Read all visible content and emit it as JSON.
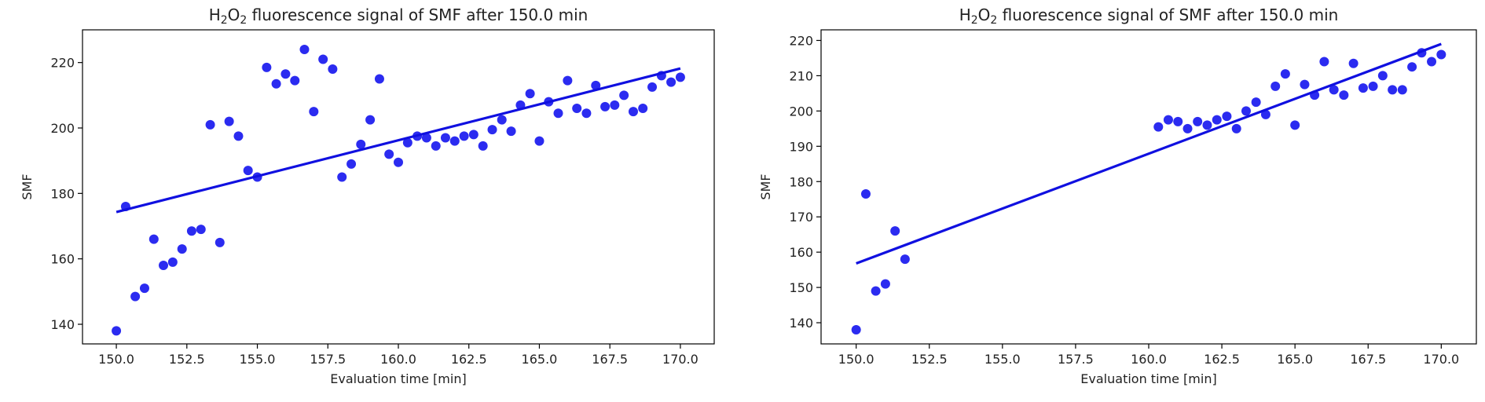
{
  "chart_data": [
    {
      "type": "scatter",
      "title": {
        "prefix": "H",
        "sub1": "2",
        "mid": "O",
        "sub2": "2",
        "rest": " fluorescence signal of SMF after 150.0 min"
      },
      "xlabel": "Evaluation time [min]",
      "ylabel": "SMF",
      "xlim": [
        148.8,
        171.2
      ],
      "ylim": [
        134.0,
        230.0
      ],
      "xticks": [
        150.0,
        152.5,
        155.0,
        157.5,
        160.0,
        162.5,
        165.0,
        167.5,
        170.0
      ],
      "xtick_labels": [
        "150.0",
        "152.5",
        "155.0",
        "157.5",
        "160.0",
        "162.5",
        "165.0",
        "167.5",
        "170.0"
      ],
      "yticks": [
        140,
        160,
        180,
        200,
        220
      ],
      "ytick_labels": [
        "140",
        "160",
        "180",
        "200",
        "220"
      ],
      "grid": false,
      "marker_color": "#2b2bf0",
      "line_color": "#1010e0",
      "series": [
        {
          "x": [
            150.0,
            150.33,
            150.67,
            151.0,
            151.33,
            151.67,
            152.0,
            152.33,
            152.67,
            153.0,
            153.33,
            153.67,
            154.0,
            154.33,
            154.67,
            155.0,
            155.33,
            155.67,
            156.0,
            156.33,
            156.67,
            157.0,
            157.33,
            157.67,
            158.0,
            158.33,
            158.67,
            159.0,
            159.33,
            159.67,
            160.0,
            160.33,
            160.67,
            161.0,
            161.33,
            161.67,
            162.0,
            162.33,
            162.67,
            163.0,
            163.33,
            163.67,
            164.0,
            164.33,
            164.67,
            165.0,
            165.33,
            165.67,
            166.0,
            166.33,
            166.67,
            167.0,
            167.33,
            167.67,
            168.0,
            168.33,
            168.67,
            169.0,
            169.33,
            169.67,
            170.0
          ],
          "y": [
            138.0,
            176.0,
            148.5,
            151.0,
            166.0,
            158.0,
            159.0,
            163.0,
            168.5,
            169.0,
            201.0,
            165.0,
            202.0,
            197.5,
            187.0,
            185.0,
            218.5,
            213.5,
            216.5,
            214.5,
            224.0,
            205.0,
            221.0,
            218.0,
            185.0,
            189.0,
            195.0,
            202.5,
            215.0,
            192.0,
            189.5,
            195.5,
            197.5,
            197.0,
            194.5,
            197.0,
            196.0,
            197.5,
            198.0,
            194.5,
            199.5,
            202.5,
            199.0,
            207.0,
            210.5,
            196.0,
            208.0,
            204.5,
            214.5,
            206.0,
            204.5,
            213.0,
            206.5,
            207.0,
            210.0,
            205.0,
            206.0,
            212.5,
            216.0,
            214.0,
            215.5
          ]
        }
      ],
      "fit": {
        "x": [
          150.0,
          170.0
        ],
        "y": [
          174.3,
          218.2
        ]
      }
    },
    {
      "type": "scatter",
      "title": {
        "prefix": "H",
        "sub1": "2",
        "mid": "O",
        "sub2": "2",
        "rest": " fluorescence signal of SMF after 150.0 min"
      },
      "xlabel": "Evaluation time [min]",
      "ylabel": "SMF",
      "xlim": [
        148.8,
        171.2
      ],
      "ylim": [
        134.0,
        223.0
      ],
      "xticks": [
        150.0,
        152.5,
        155.0,
        157.5,
        160.0,
        162.5,
        165.0,
        167.5,
        170.0
      ],
      "xtick_labels": [
        "150.0",
        "152.5",
        "155.0",
        "157.5",
        "160.0",
        "162.5",
        "165.0",
        "167.5",
        "170.0"
      ],
      "yticks": [
        140,
        150,
        160,
        170,
        180,
        190,
        200,
        210,
        220
      ],
      "ytick_labels": [
        "140",
        "150",
        "160",
        "170",
        "180",
        "190",
        "200",
        "210",
        "220"
      ],
      "grid": false,
      "marker_color": "#2b2bf0",
      "line_color": "#1010e0",
      "series": [
        {
          "x": [
            150.0,
            150.33,
            150.67,
            151.0,
            151.33,
            151.67,
            160.33,
            160.67,
            161.0,
            161.33,
            161.67,
            162.0,
            162.33,
            162.67,
            163.0,
            163.33,
            163.67,
            164.0,
            164.33,
            164.67,
            165.0,
            165.33,
            165.67,
            166.0,
            166.33,
            166.67,
            167.0,
            167.33,
            167.67,
            168.0,
            168.33,
            168.67,
            169.0,
            169.33,
            169.67,
            170.0
          ],
          "y": [
            138.0,
            176.5,
            149.0,
            151.0,
            166.0,
            158.0,
            195.5,
            197.5,
            197.0,
            195.0,
            197.0,
            196.0,
            197.5,
            198.5,
            195.0,
            200.0,
            202.5,
            199.0,
            207.0,
            210.5,
            196.0,
            207.5,
            204.5,
            214.0,
            206.0,
            204.5,
            213.5,
            206.5,
            207.0,
            210.0,
            206.0,
            206.0,
            212.5,
            216.5,
            214.0,
            216.0
          ]
        }
      ],
      "fit": {
        "x": [
          150.0,
          170.0
        ],
        "y": [
          156.8,
          219.0
        ]
      }
    }
  ]
}
